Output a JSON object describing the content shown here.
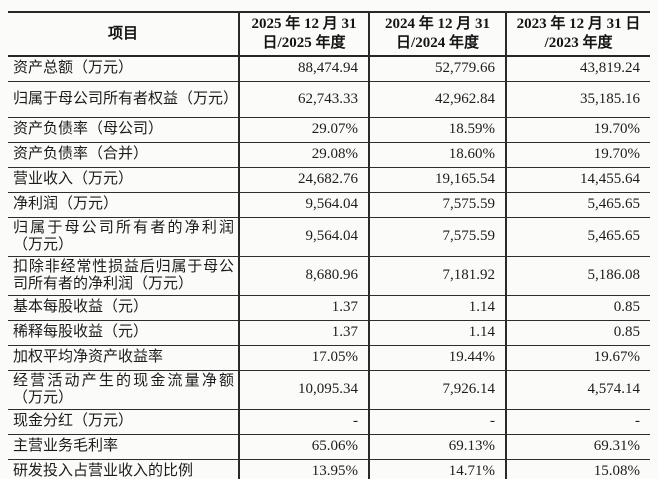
{
  "doc": {
    "type": "financial-summary-table",
    "text_color": "#1c1c1c",
    "border_color": "#2a2a2a",
    "background_color": "#fbfbfa"
  },
  "header": {
    "item": "项目",
    "col2025_line1": "2025 年 12 月 31",
    "col2025_line2": "日/2025 年度",
    "col2024_line1": "2024 年 12 月 31",
    "col2024_line2": "日/2024 年度",
    "col2023_line1": "2023 年 12 月 31 日",
    "col2023_line2": "/2023 年度"
  },
  "rows": [
    {
      "label": "资产总额（万元）",
      "values": [
        "88,474.94",
        "52,779.66",
        "43,819.24"
      ]
    },
    {
      "label": "归属于母公司所有者权益（万元）",
      "values": [
        "62,743.33",
        "42,962.84",
        "35,185.16"
      ]
    },
    {
      "label": "资产负债率（母公司）",
      "values": [
        "29.07%",
        "18.59%",
        "19.70%"
      ]
    },
    {
      "label": "资产负债率（合并）",
      "values": [
        "29.08%",
        "18.60%",
        "19.70%"
      ]
    },
    {
      "label": "营业收入（万元）",
      "values": [
        "24,682.76",
        "19,165.54",
        "14,455.64"
      ]
    },
    {
      "label": "净利润（万元）",
      "values": [
        "9,564.04",
        "7,575.59",
        "5,465.65"
      ]
    },
    {
      "label": "归属于母公司所有者的净利润（万元）",
      "values": [
        "9,564.04",
        "7,575.59",
        "5,465.65"
      ]
    },
    {
      "label": "扣除非经常性损益后归属于母公司所有者的净利润（万元）",
      "values": [
        "8,680.96",
        "7,181.92",
        "5,186.08"
      ]
    },
    {
      "label": "基本每股收益（元）",
      "values": [
        "1.37",
        "1.14",
        "0.85"
      ]
    },
    {
      "label": "稀释每股收益（元）",
      "values": [
        "1.37",
        "1.14",
        "0.85"
      ]
    },
    {
      "label": "加权平均净资产收益率",
      "values": [
        "17.05%",
        "19.44%",
        "19.67%"
      ]
    },
    {
      "label": "经营活动产生的现金流量净额（万元）",
      "values": [
        "10,095.34",
        "7,926.14",
        "4,574.14"
      ]
    },
    {
      "label": "现金分红（万元）",
      "values": [
        "-",
        "-",
        "-"
      ]
    },
    {
      "label": "主营业务毛利率",
      "values": [
        "65.06%",
        "69.13%",
        "69.31%"
      ]
    },
    {
      "label": "研发投入占营业收入的比例",
      "values": [
        "13.95%",
        "14.71%",
        "15.08%"
      ]
    }
  ]
}
